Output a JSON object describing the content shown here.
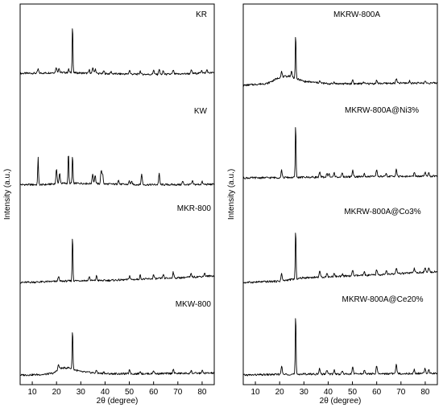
{
  "chart_data": [
    {
      "type": "line",
      "panel": "left",
      "xlabel": "2θ (degree)",
      "ylabel": "Intensity (a.u.)",
      "xlim": [
        5,
        85
      ],
      "xticks": [
        10,
        20,
        30,
        40,
        50,
        60,
        70,
        80
      ],
      "grid": false,
      "series": [
        {
          "name": "KR",
          "baseline": [
            [
              5,
              0.45
            ],
            [
              15,
              0.5
            ],
            [
              20,
              0.6
            ],
            [
              26,
              0.55
            ],
            [
              35,
              0.45
            ],
            [
              50,
              0.35
            ],
            [
              60,
              0.3
            ],
            [
              70,
              0.35
            ],
            [
              80,
              0.5
            ],
            [
              85,
              0.55
            ]
          ],
          "peaks": [
            [
              12.4,
              0.6
            ],
            [
              19.9,
              0.8
            ],
            [
              21.0,
              0.7
            ],
            [
              25.0,
              0.5
            ],
            [
              26.6,
              7.5
            ],
            [
              33.5,
              0.5
            ],
            [
              35.0,
              0.9
            ],
            [
              36.0,
              0.7
            ],
            [
              39.5,
              0.4
            ],
            [
              42.5,
              0.3
            ],
            [
              50.1,
              0.6
            ],
            [
              54.5,
              0.5
            ],
            [
              60.0,
              0.7
            ],
            [
              62.3,
              0.8
            ],
            [
              64.0,
              0.5
            ],
            [
              68.1,
              0.6
            ],
            [
              75.6,
              0.5
            ],
            [
              79.8,
              0.5
            ],
            [
              82.0,
              0.5
            ]
          ]
        },
        {
          "name": "KW",
          "baseline": [
            [
              5,
              0.3
            ],
            [
              15,
              0.3
            ],
            [
              22,
              0.5
            ],
            [
              30,
              0.5
            ],
            [
              40,
              0.4
            ],
            [
              55,
              0.3
            ],
            [
              70,
              0.3
            ],
            [
              85,
              0.35
            ]
          ],
          "peaks": [
            [
              12.4,
              4.2
            ],
            [
              20.0,
              2.2
            ],
            [
              21.3,
              1.5
            ],
            [
              24.9,
              4.8
            ],
            [
              26.6,
              4.3
            ],
            [
              34.9,
              1.5
            ],
            [
              35.9,
              1.3
            ],
            [
              38.4,
              2.0
            ],
            [
              39.0,
              1.5
            ],
            [
              45.5,
              0.7
            ],
            [
              50.0,
              0.5
            ],
            [
              51.0,
              0.4
            ],
            [
              55.1,
              1.6
            ],
            [
              62.3,
              1.6
            ],
            [
              72.0,
              0.5
            ],
            [
              76.0,
              0.5
            ],
            [
              80.0,
              0.4
            ]
          ]
        },
        {
          "name": "MKR-800",
          "baseline": [
            [
              5,
              0.1
            ],
            [
              18,
              0.25
            ],
            [
              30,
              0.4
            ],
            [
              40,
              0.4
            ],
            [
              55,
              0.6
            ],
            [
              70,
              0.8
            ],
            [
              85,
              1.1
            ]
          ],
          "peaks": [
            [
              20.8,
              0.8
            ],
            [
              26.6,
              7.0
            ],
            [
              33.5,
              0.6
            ],
            [
              36.5,
              0.7
            ],
            [
              50.1,
              0.6
            ],
            [
              54.5,
              0.6
            ],
            [
              60.0,
              0.6
            ],
            [
              64.0,
              0.6
            ],
            [
              68.1,
              0.9
            ],
            [
              75.5,
              0.5
            ],
            [
              81.0,
              0.5
            ]
          ]
        },
        {
          "name": "MKW-800",
          "baseline": [
            [
              5,
              0.1
            ],
            [
              15,
              0.2
            ],
            [
              19,
              0.4
            ],
            [
              21,
              1.1
            ],
            [
              25,
              1.2
            ],
            [
              30,
              0.6
            ],
            [
              40,
              0.3
            ],
            [
              55,
              0.3
            ],
            [
              70,
              0.35
            ],
            [
              85,
              0.4
            ]
          ],
          "peaks": [
            [
              20.8,
              0.6
            ],
            [
              26.6,
              6.2
            ],
            [
              36.5,
              0.4
            ],
            [
              39.5,
              0.3
            ],
            [
              50.1,
              0.7
            ],
            [
              54.5,
              0.4
            ],
            [
              60.0,
              0.5
            ],
            [
              68.1,
              0.7
            ],
            [
              75.5,
              0.4
            ],
            [
              80.0,
              0.4
            ]
          ]
        }
      ]
    },
    {
      "type": "line",
      "panel": "right",
      "xlabel": "2θ (degree)",
      "ylabel": "Intensity (a.u.)",
      "xlim": [
        5,
        85
      ],
      "xticks": [
        10,
        20,
        30,
        40,
        50,
        60,
        70,
        80
      ],
      "grid": false,
      "series": [
        {
          "name": "MKRW-800A",
          "baseline": [
            [
              5,
              0.1
            ],
            [
              15,
              0.4
            ],
            [
              20,
              1.3
            ],
            [
              24,
              1.5
            ],
            [
              30,
              0.7
            ],
            [
              40,
              0.35
            ],
            [
              55,
              0.35
            ],
            [
              70,
              0.45
            ],
            [
              85,
              0.45
            ]
          ],
          "peaks": [
            [
              20.8,
              0.8
            ],
            [
              24.9,
              0.8
            ],
            [
              26.6,
              6.8
            ],
            [
              36.5,
              0.3
            ],
            [
              42.5,
              0.3
            ],
            [
              50.1,
              0.6
            ],
            [
              54.5,
              0.3
            ],
            [
              60.0,
              0.5
            ],
            [
              68.1,
              0.7
            ],
            [
              73.5,
              0.3
            ],
            [
              80.0,
              0.3
            ]
          ]
        },
        {
          "name": "MKRW-800A@Ni3%",
          "baseline": [
            [
              5,
              0.1
            ],
            [
              20,
              0.15
            ],
            [
              30,
              0.2
            ],
            [
              45,
              0.25
            ],
            [
              60,
              0.3
            ],
            [
              85,
              0.35
            ]
          ],
          "peaks": [
            [
              20.8,
              1.1
            ],
            [
              26.6,
              8.0
            ],
            [
              36.5,
              0.7
            ],
            [
              39.5,
              0.5
            ],
            [
              40.3,
              0.5
            ],
            [
              42.5,
              0.6
            ],
            [
              45.8,
              0.5
            ],
            [
              50.1,
              1.0
            ],
            [
              54.9,
              0.6
            ],
            [
              60.0,
              1.1
            ],
            [
              64.0,
              0.4
            ],
            [
              68.1,
              1.2
            ],
            [
              75.5,
              0.5
            ],
            [
              79.9,
              0.6
            ],
            [
              81.5,
              0.6
            ]
          ]
        },
        {
          "name": "MKRW-800A@Co3%",
          "baseline": [
            [
              5,
              0.1
            ],
            [
              20,
              0.3
            ],
            [
              30,
              0.8
            ],
            [
              45,
              1.0
            ],
            [
              60,
              1.2
            ],
            [
              75,
              1.5
            ],
            [
              85,
              1.7
            ]
          ],
          "peaks": [
            [
              20.8,
              1.1
            ],
            [
              26.6,
              7.5
            ],
            [
              36.5,
              0.9
            ],
            [
              39.5,
              0.5
            ],
            [
              42.5,
              0.5
            ],
            [
              45.8,
              0.4
            ],
            [
              50.1,
              0.9
            ],
            [
              54.9,
              0.5
            ],
            [
              60.0,
              0.8
            ],
            [
              64.0,
              0.5
            ],
            [
              68.1,
              0.9
            ],
            [
              75.5,
              0.6
            ],
            [
              79.9,
              0.6
            ],
            [
              81.5,
              0.6
            ]
          ]
        },
        {
          "name": "MKRW-800A@Ce20%",
          "baseline": [
            [
              5,
              0.1
            ],
            [
              20,
              0.2
            ],
            [
              30,
              0.25
            ],
            [
              45,
              0.25
            ],
            [
              60,
              0.3
            ],
            [
              85,
              0.35
            ]
          ],
          "peaks": [
            [
              20.8,
              1.3
            ],
            [
              26.6,
              9.0
            ],
            [
              36.5,
              0.8
            ],
            [
              39.5,
              0.6
            ],
            [
              42.5,
              0.6
            ],
            [
              45.8,
              0.5
            ],
            [
              50.1,
              1.1
            ],
            [
              54.9,
              0.6
            ],
            [
              60.0,
              1.2
            ],
            [
              68.1,
              1.3
            ],
            [
              75.5,
              0.6
            ],
            [
              79.9,
              0.8
            ],
            [
              81.5,
              0.7
            ]
          ]
        }
      ]
    }
  ]
}
